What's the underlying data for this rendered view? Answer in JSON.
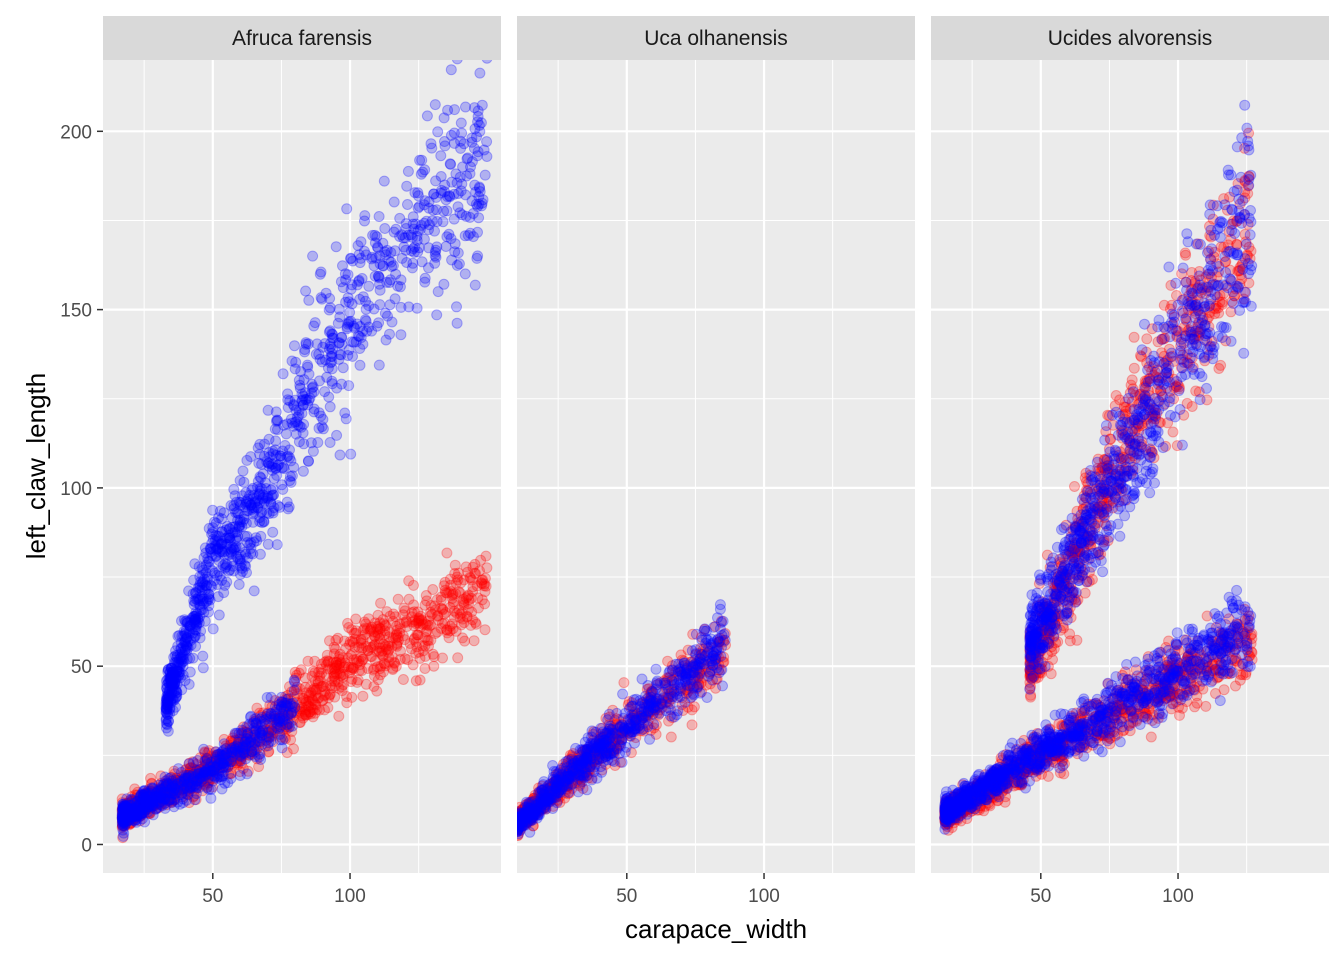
{
  "chart_data": {
    "type": "scatter",
    "layout": "facet_wrap",
    "xlabel": "carapace_width",
    "ylabel": "left_claw_length",
    "xlim": [
      10,
      155
    ],
    "ylim": [
      -8,
      220
    ],
    "x_ticks": [
      50,
      100
    ],
    "y_ticks": [
      0,
      50,
      100,
      150,
      200
    ],
    "grid": true,
    "legend": "none",
    "colors": {
      "panel_bg": "#ebebeb",
      "strip_bg": "#d9d9d9",
      "grid": "#ffffff",
      "series_red": "#ff0000",
      "series_blue": "#0000ff"
    },
    "point_alpha": 0.25,
    "facets": [
      {
        "title": "Afruca farensis",
        "groups": [
          {
            "color": "#ff0000",
            "x_range": [
              17,
              150
            ],
            "trend": [
              [
                17,
                8
              ],
              [
                50,
                21
              ],
              [
                75,
                35
              ],
              [
                100,
                52
              ],
              [
                130,
                62
              ],
              [
                150,
                74
              ]
            ]
          },
          {
            "color": "#0000ff",
            "x_range": [
              17,
              80
            ],
            "trend": [
              [
                17,
                8
              ],
              [
                50,
                21
              ],
              [
                80,
                38
              ]
            ]
          },
          {
            "color": "#0000ff",
            "x_range": [
              33,
              150
            ],
            "trend": [
              [
                33,
                40
              ],
              [
                50,
                78
              ],
              [
                70,
                100
              ],
              [
                90,
                135
              ],
              [
                110,
                160
              ],
              [
                130,
                178
              ],
              [
                150,
                190
              ]
            ]
          }
        ]
      },
      {
        "title": "Uca olhanensis",
        "groups": [
          {
            "color": "#ff0000",
            "x_range": [
              10,
              86
            ],
            "trend": [
              [
                10,
                6
              ],
              [
                50,
                33
              ],
              [
                86,
                55
              ]
            ]
          },
          {
            "color": "#0000ff",
            "x_range": [
              10,
              86
            ],
            "trend": [
              [
                10,
                6
              ],
              [
                50,
                33
              ],
              [
                86,
                57
              ]
            ]
          }
        ]
      },
      {
        "title": "Ucides alvorensis",
        "groups": [
          {
            "color": "#ff0000",
            "x_range": [
              15,
              127
            ],
            "trend": [
              [
                15,
                8
              ],
              [
                50,
                25
              ],
              [
                80,
                38
              ],
              [
                127,
                58
              ]
            ]
          },
          {
            "color": "#0000ff",
            "x_range": [
              15,
              127
            ],
            "trend": [
              [
                15,
                9
              ],
              [
                50,
                26
              ],
              [
                80,
                40
              ],
              [
                127,
                60
              ]
            ]
          },
          {
            "color": "#ff0000",
            "x_range": [
              46,
              127
            ],
            "trend": [
              [
                46,
                50
              ],
              [
                60,
                75
              ],
              [
                80,
                110
              ],
              [
                100,
                140
              ],
              [
                127,
                175
              ]
            ]
          },
          {
            "color": "#0000ff",
            "x_range": [
              46,
              127
            ],
            "trend": [
              [
                46,
                55
              ],
              [
                60,
                78
              ],
              [
                80,
                105
              ],
              [
                100,
                140
              ],
              [
                127,
                180
              ]
            ]
          }
        ]
      }
    ]
  }
}
